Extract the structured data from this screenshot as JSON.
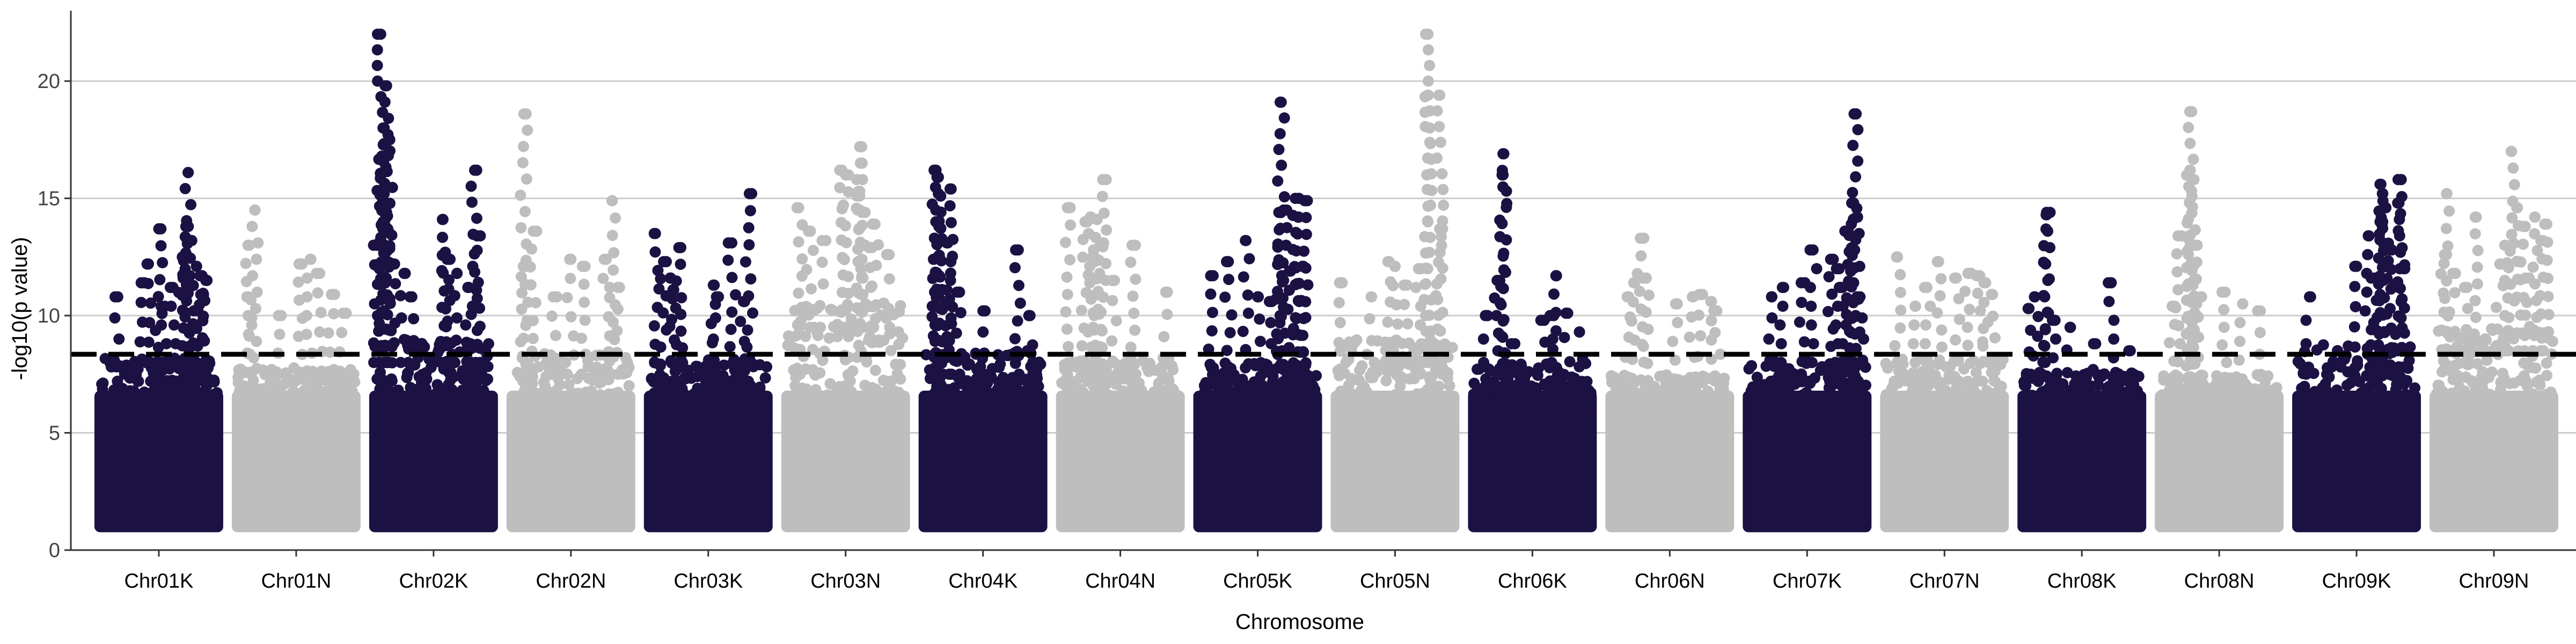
{
  "chart_data": {
    "type": "scatter",
    "title": "",
    "xlabel": "Chromosome",
    "ylabel": "-log10(p value)",
    "ylim": [
      0,
      23
    ],
    "yticks": [
      0,
      5,
      10,
      15,
      20
    ],
    "grid": "horizontal",
    "threshold": 8.35,
    "colors": {
      "dark": "#1c1143",
      "light": "#bebebe",
      "threshold": "#000000",
      "grid": "#cccccc"
    },
    "categories": [
      "Chr01K",
      "Chr01N",
      "Chr02K",
      "Chr02N",
      "Chr03K",
      "Chr03N",
      "Chr04K",
      "Chr04N",
      "Chr05K",
      "Chr05N",
      "Chr06K",
      "Chr06N",
      "Chr07K",
      "Chr07N",
      "Chr08K",
      "Chr08N",
      "Chr09K",
      "Chr09N"
    ],
    "chromosomes": [
      {
        "name": "Chr01K",
        "color": "dark",
        "base_max": 8.2,
        "peaks": [
          [
            0.4,
            12.2
          ],
          [
            0.35,
            11.4
          ],
          [
            0.15,
            10.8
          ],
          [
            0.5,
            13.7
          ],
          [
            0.55,
            10.4
          ],
          [
            0.62,
            11.2
          ],
          [
            0.75,
            16.1
          ],
          [
            0.73,
            13.8
          ],
          [
            0.78,
            13.2
          ],
          [
            0.82,
            12.1
          ],
          [
            0.85,
            11.7
          ],
          [
            0.9,
            11.5
          ],
          [
            0.7,
            12.5
          ],
          [
            0.88,
            10.9
          ]
        ]
      },
      {
        "name": "Chr01N",
        "color": "light",
        "base_max": 7.8,
        "peaks": [
          [
            0.15,
            14.5
          ],
          [
            0.1,
            13.0
          ],
          [
            0.08,
            10.8
          ],
          [
            0.55,
            12.2
          ],
          [
            0.62,
            12.4
          ],
          [
            0.7,
            11.8
          ],
          [
            0.8,
            10.9
          ],
          [
            0.9,
            10.1
          ],
          [
            0.35,
            10.0
          ]
        ]
      },
      {
        "name": "Chr02K",
        "color": "dark",
        "base_max": 9.0,
        "peaks": [
          [
            0.05,
            22.0
          ],
          [
            0.1,
            19.8
          ],
          [
            0.07,
            18.0
          ],
          [
            0.12,
            17.5
          ],
          [
            0.06,
            16.8
          ],
          [
            0.1,
            14.4
          ],
          [
            0.08,
            15.2
          ],
          [
            0.02,
            13.0
          ],
          [
            0.15,
            12.2
          ],
          [
            0.25,
            11.8
          ],
          [
            0.6,
            12.7
          ],
          [
            0.58,
            14.1
          ],
          [
            0.64,
            12.4
          ],
          [
            0.7,
            11.8
          ],
          [
            0.85,
            16.2
          ],
          [
            0.87,
            13.4
          ],
          [
            0.8,
            11.2
          ],
          [
            0.3,
            10.8
          ]
        ]
      },
      {
        "name": "Chr02N",
        "color": "light",
        "base_max": 8.5,
        "peaks": [
          [
            0.1,
            18.6
          ],
          [
            0.18,
            13.6
          ],
          [
            0.12,
            12.1
          ],
          [
            0.5,
            12.4
          ],
          [
            0.62,
            12.1
          ],
          [
            0.85,
            14.9
          ],
          [
            0.8,
            12.4
          ],
          [
            0.9,
            11.2
          ],
          [
            0.35,
            10.8
          ]
        ]
      },
      {
        "name": "Chr03K",
        "color": "dark",
        "base_max": 8.2,
        "peaks": [
          [
            0.05,
            13.5
          ],
          [
            0.12,
            12.3
          ],
          [
            0.2,
            11.1
          ],
          [
            0.25,
            12.9
          ],
          [
            0.18,
            11.6
          ],
          [
            0.55,
            11.3
          ],
          [
            0.57,
            10.8
          ],
          [
            0.7,
            13.1
          ],
          [
            0.85,
            15.2
          ],
          [
            0.8,
            10.6
          ]
        ]
      },
      {
        "name": "Chr03N",
        "color": "light",
        "base_max": 10.5,
        "peaks": [
          [
            0.1,
            14.6
          ],
          [
            0.2,
            13.6
          ],
          [
            0.3,
            13.2
          ],
          [
            0.45,
            16.2
          ],
          [
            0.5,
            16.0
          ],
          [
            0.62,
            17.2
          ],
          [
            0.64,
            16.5
          ],
          [
            0.62,
            15.3
          ],
          [
            0.62,
            14.5
          ],
          [
            0.75,
            13.9
          ],
          [
            0.7,
            12.9
          ],
          [
            0.85,
            12.6
          ]
        ]
      },
      {
        "name": "Chr04K",
        "color": "dark",
        "base_max": 8.5,
        "peaks": [
          [
            0.1,
            16.2
          ],
          [
            0.12,
            15.9
          ],
          [
            0.14,
            15.1
          ],
          [
            0.12,
            14.0
          ],
          [
            0.22,
            15.4
          ],
          [
            0.2,
            13.1
          ],
          [
            0.08,
            12.4
          ],
          [
            0.18,
            10.6
          ],
          [
            0.3,
            11.0
          ],
          [
            0.5,
            10.2
          ],
          [
            0.8,
            12.8
          ],
          [
            0.9,
            10.0
          ]
        ]
      },
      {
        "name": "Chr04N",
        "color": "light",
        "base_max": 8.2,
        "peaks": [
          [
            0.05,
            14.6
          ],
          [
            0.2,
            14.0
          ],
          [
            0.25,
            14.2
          ],
          [
            0.35,
            15.8
          ],
          [
            0.3,
            14.1
          ],
          [
            0.33,
            13.1
          ],
          [
            0.28,
            12.3
          ],
          [
            0.6,
            13.0
          ],
          [
            0.45,
            11.5
          ],
          [
            0.9,
            11.0
          ]
        ]
      },
      {
        "name": "Chr05K",
        "color": "dark",
        "base_max": 8.0,
        "peaks": [
          [
            0.1,
            11.7
          ],
          [
            0.25,
            12.3
          ],
          [
            0.4,
            13.2
          ],
          [
            0.7,
            19.1
          ],
          [
            0.68,
            14.4
          ],
          [
            0.72,
            14.5
          ],
          [
            0.82,
            15.0
          ],
          [
            0.85,
            14.2
          ],
          [
            0.9,
            14.9
          ],
          [
            0.88,
            12.1
          ],
          [
            0.78,
            11.9
          ],
          [
            0.5,
            10.8
          ],
          [
            0.6,
            10.6
          ]
        ]
      },
      {
        "name": "Chr05N",
        "color": "light",
        "base_max": 9.0,
        "peaks": [
          [
            0.05,
            11.4
          ],
          [
            0.45,
            12.3
          ],
          [
            0.5,
            12.1
          ],
          [
            0.78,
            22.0
          ],
          [
            0.78,
            19.4
          ],
          [
            0.88,
            19.4
          ],
          [
            0.88,
            13.7
          ],
          [
            0.7,
            12.0
          ],
          [
            0.6,
            11.3
          ],
          [
            0.3,
            10.8
          ]
        ]
      },
      {
        "name": "Chr06K",
        "color": "dark",
        "base_max": 8.0,
        "peaks": [
          [
            0.1,
            10.0
          ],
          [
            0.2,
            11.5
          ],
          [
            0.25,
            16.9
          ],
          [
            0.25,
            16.0
          ],
          [
            0.6,
            9.8
          ],
          [
            0.65,
            10.0
          ],
          [
            0.7,
            11.7
          ],
          [
            0.8,
            10.1
          ],
          [
            0.9,
            9.3
          ],
          [
            0.35,
            8.8
          ]
        ]
      },
      {
        "name": "Chr06N",
        "color": "light",
        "base_max": 7.5,
        "peaks": [
          [
            0.15,
            10.8
          ],
          [
            0.2,
            11.4
          ],
          [
            0.25,
            13.3
          ],
          [
            0.3,
            11.6
          ],
          [
            0.55,
            10.5
          ],
          [
            0.7,
            10.8
          ],
          [
            0.75,
            10.9
          ],
          [
            0.85,
            10.6
          ],
          [
            0.9,
            10.2
          ]
        ]
      },
      {
        "name": "Chr07K",
        "color": "dark",
        "base_max": 8.2,
        "peaks": [
          [
            0.2,
            10.8
          ],
          [
            0.3,
            11.2
          ],
          [
            0.45,
            11.4
          ],
          [
            0.55,
            12.8
          ],
          [
            0.7,
            12.4
          ],
          [
            0.75,
            12.0
          ],
          [
            0.9,
            18.6
          ],
          [
            0.88,
            14.8
          ],
          [
            0.92,
            14.2
          ],
          [
            0.85,
            13.6
          ],
          [
            0.8,
            11.2
          ],
          [
            0.95,
            10.8
          ]
        ]
      },
      {
        "name": "Chr07N",
        "color": "light",
        "base_max": 8.2,
        "peaks": [
          [
            0.1,
            12.5
          ],
          [
            0.35,
            11.2
          ],
          [
            0.45,
            12.3
          ],
          [
            0.6,
            11.6
          ],
          [
            0.7,
            11.8
          ],
          [
            0.8,
            11.7
          ],
          [
            0.85,
            11.4
          ],
          [
            0.9,
            10.9
          ],
          [
            0.25,
            10.4
          ]
        ]
      },
      {
        "name": "Chr08K",
        "color": "dark",
        "base_max": 7.6,
        "peaks": [
          [
            0.05,
            10.3
          ],
          [
            0.1,
            10.8
          ],
          [
            0.2,
            14.4
          ],
          [
            0.2,
            14.3
          ],
          [
            0.25,
            9.8
          ],
          [
            0.4,
            9.5
          ],
          [
            0.6,
            8.8
          ],
          [
            0.75,
            11.4
          ],
          [
            0.9,
            8.5
          ]
        ]
      },
      {
        "name": "Chr08N",
        "color": "light",
        "base_max": 7.5,
        "peaks": [
          [
            0.1,
            10.4
          ],
          [
            0.15,
            13.4
          ],
          [
            0.25,
            18.7
          ],
          [
            0.25,
            16.2
          ],
          [
            0.27,
            15.8
          ],
          [
            0.3,
            13.0
          ],
          [
            0.28,
            12.1
          ],
          [
            0.35,
            10.8
          ],
          [
            0.55,
            11.0
          ],
          [
            0.7,
            10.5
          ],
          [
            0.85,
            10.2
          ]
        ]
      },
      {
        "name": "Chr09K",
        "color": "dark",
        "base_max": 8.8,
        "peaks": [
          [
            0.1,
            10.8
          ],
          [
            0.5,
            12.1
          ],
          [
            0.6,
            13.4
          ],
          [
            0.7,
            15.6
          ],
          [
            0.72,
            15.2
          ],
          [
            0.74,
            14.6
          ],
          [
            0.7,
            14.0
          ],
          [
            0.88,
            15.8
          ],
          [
            0.85,
            14.8
          ],
          [
            0.8,
            12.8
          ],
          [
            0.9,
            12.0
          ],
          [
            0.65,
            11.6
          ]
        ]
      },
      {
        "name": "Chr09N",
        "color": "light",
        "base_max": 9.5,
        "peaks": [
          [
            0.08,
            12.6
          ],
          [
            0.1,
            15.2
          ],
          [
            0.15,
            11.8
          ],
          [
            0.25,
            11.2
          ],
          [
            0.35,
            14.2
          ],
          [
            0.55,
            12.2
          ],
          [
            0.6,
            13.0
          ],
          [
            0.65,
            17.0
          ],
          [
            0.7,
            14.6
          ],
          [
            0.75,
            13.8
          ],
          [
            0.85,
            14.2
          ],
          [
            0.9,
            13.2
          ],
          [
            0.95,
            13.9
          ],
          [
            0.8,
            11.6
          ]
        ]
      }
    ]
  }
}
